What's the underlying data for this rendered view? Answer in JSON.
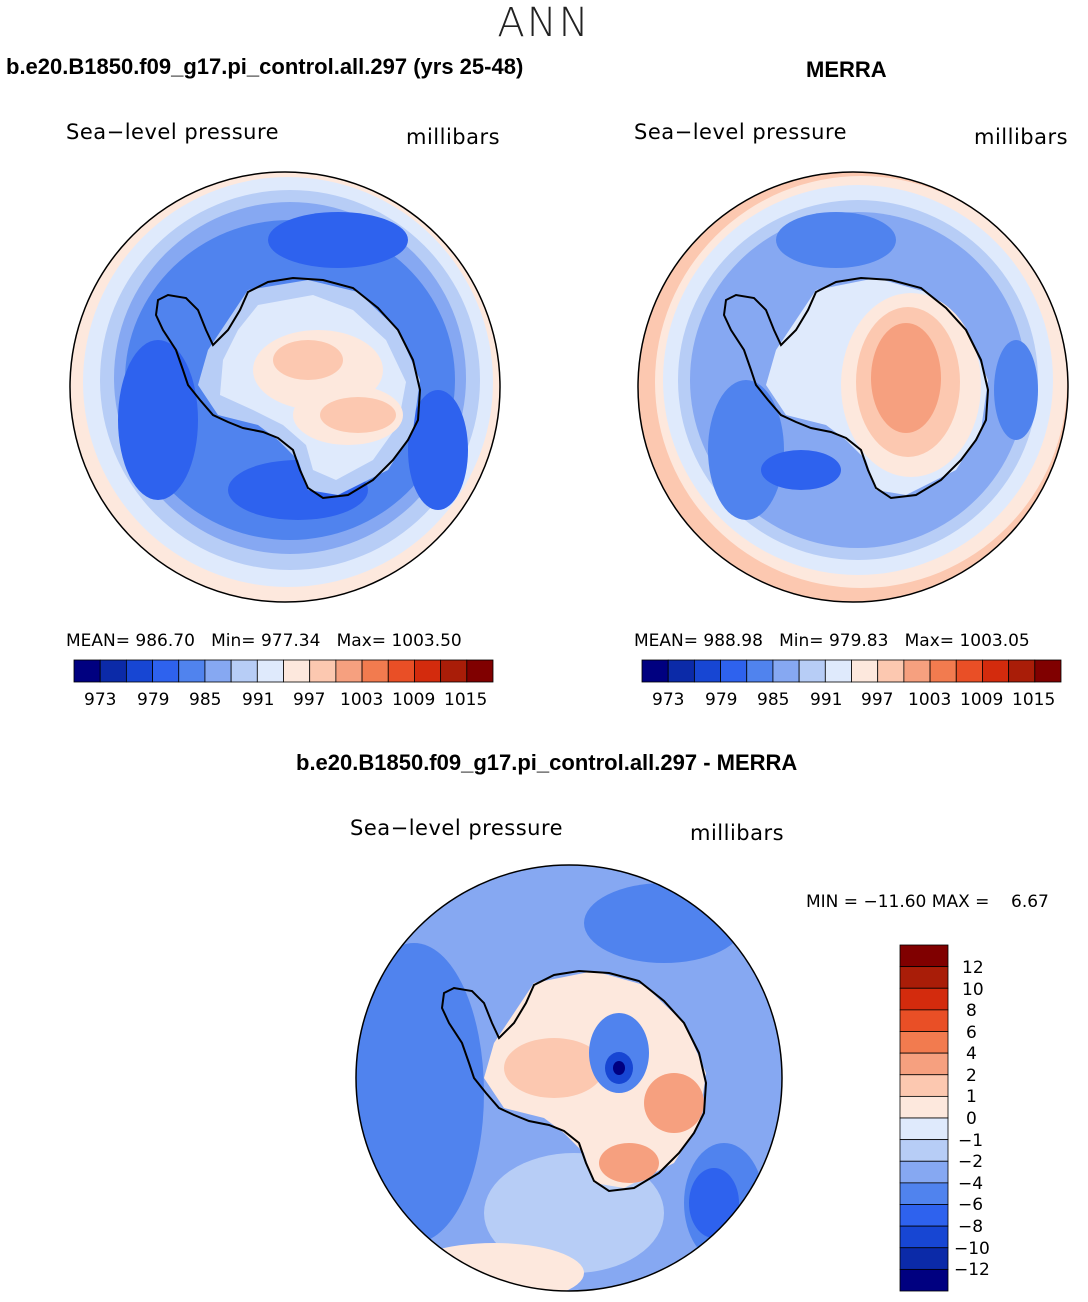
{
  "figure_title": "ANN",
  "colors": {
    "abs_scale": [
      "#000080",
      "#0b2aa8",
      "#1746d3",
      "#2e62ee",
      "#5083ee",
      "#86a8f2",
      "#b7cdf6",
      "#dfeafc",
      "#fde8dd",
      "#fcc8b0",
      "#f6a07f",
      "#f27b4f",
      "#e94f26",
      "#d32b0d",
      "#a91d08",
      "#800000"
    ],
    "diff_scale": [
      "#000080",
      "#0b2aa8",
      "#1746d3",
      "#2e62ee",
      "#5083ee",
      "#86a8f2",
      "#b7cdf6",
      "#dfeafc",
      "#fde8dd",
      "#fcc8b0",
      "#f6a07f",
      "#f27b4f",
      "#e94f26",
      "#d32b0d",
      "#a91d08",
      "#800000"
    ],
    "coastline": "#000000"
  },
  "panels": {
    "model": {
      "title": "b.e20.B1850.f09_g17.pi_control.all.297 (yrs 25-48)",
      "variable": "Sea−level pressure",
      "units": "millibars",
      "mean_label": "MEAN=",
      "mean": "986.70",
      "min_label": "Min=",
      "min": "977.34",
      "max_label": "Max=",
      "max": "1003.50"
    },
    "obs": {
      "title": "MERRA",
      "variable": "Sea−level pressure",
      "units": "millibars",
      "mean_label": "MEAN=",
      "mean": "988.98",
      "min_label": "Min=",
      "min": "979.83",
      "max_label": "Max=",
      "max": "1003.05"
    },
    "diff": {
      "title": "b.e20.B1850.f09_g17.pi_control.all.297 - MERRA",
      "variable": "Sea−level pressure",
      "units": "millibars",
      "min_label": "MIN =",
      "min": "−11.60",
      "max_label": "MAX =",
      "max": "6.67"
    }
  },
  "colorbar_abs_labels": [
    "973",
    "979",
    "985",
    "991",
    "997",
    "1003",
    "1009",
    "1015"
  ],
  "colorbar_diff_labels": [
    "12",
    "10",
    "8",
    "6",
    "4",
    "2",
    "1",
    "0",
    "−1",
    "−2",
    "−4",
    "−6",
    "−8",
    "−10",
    "−12"
  ]
}
